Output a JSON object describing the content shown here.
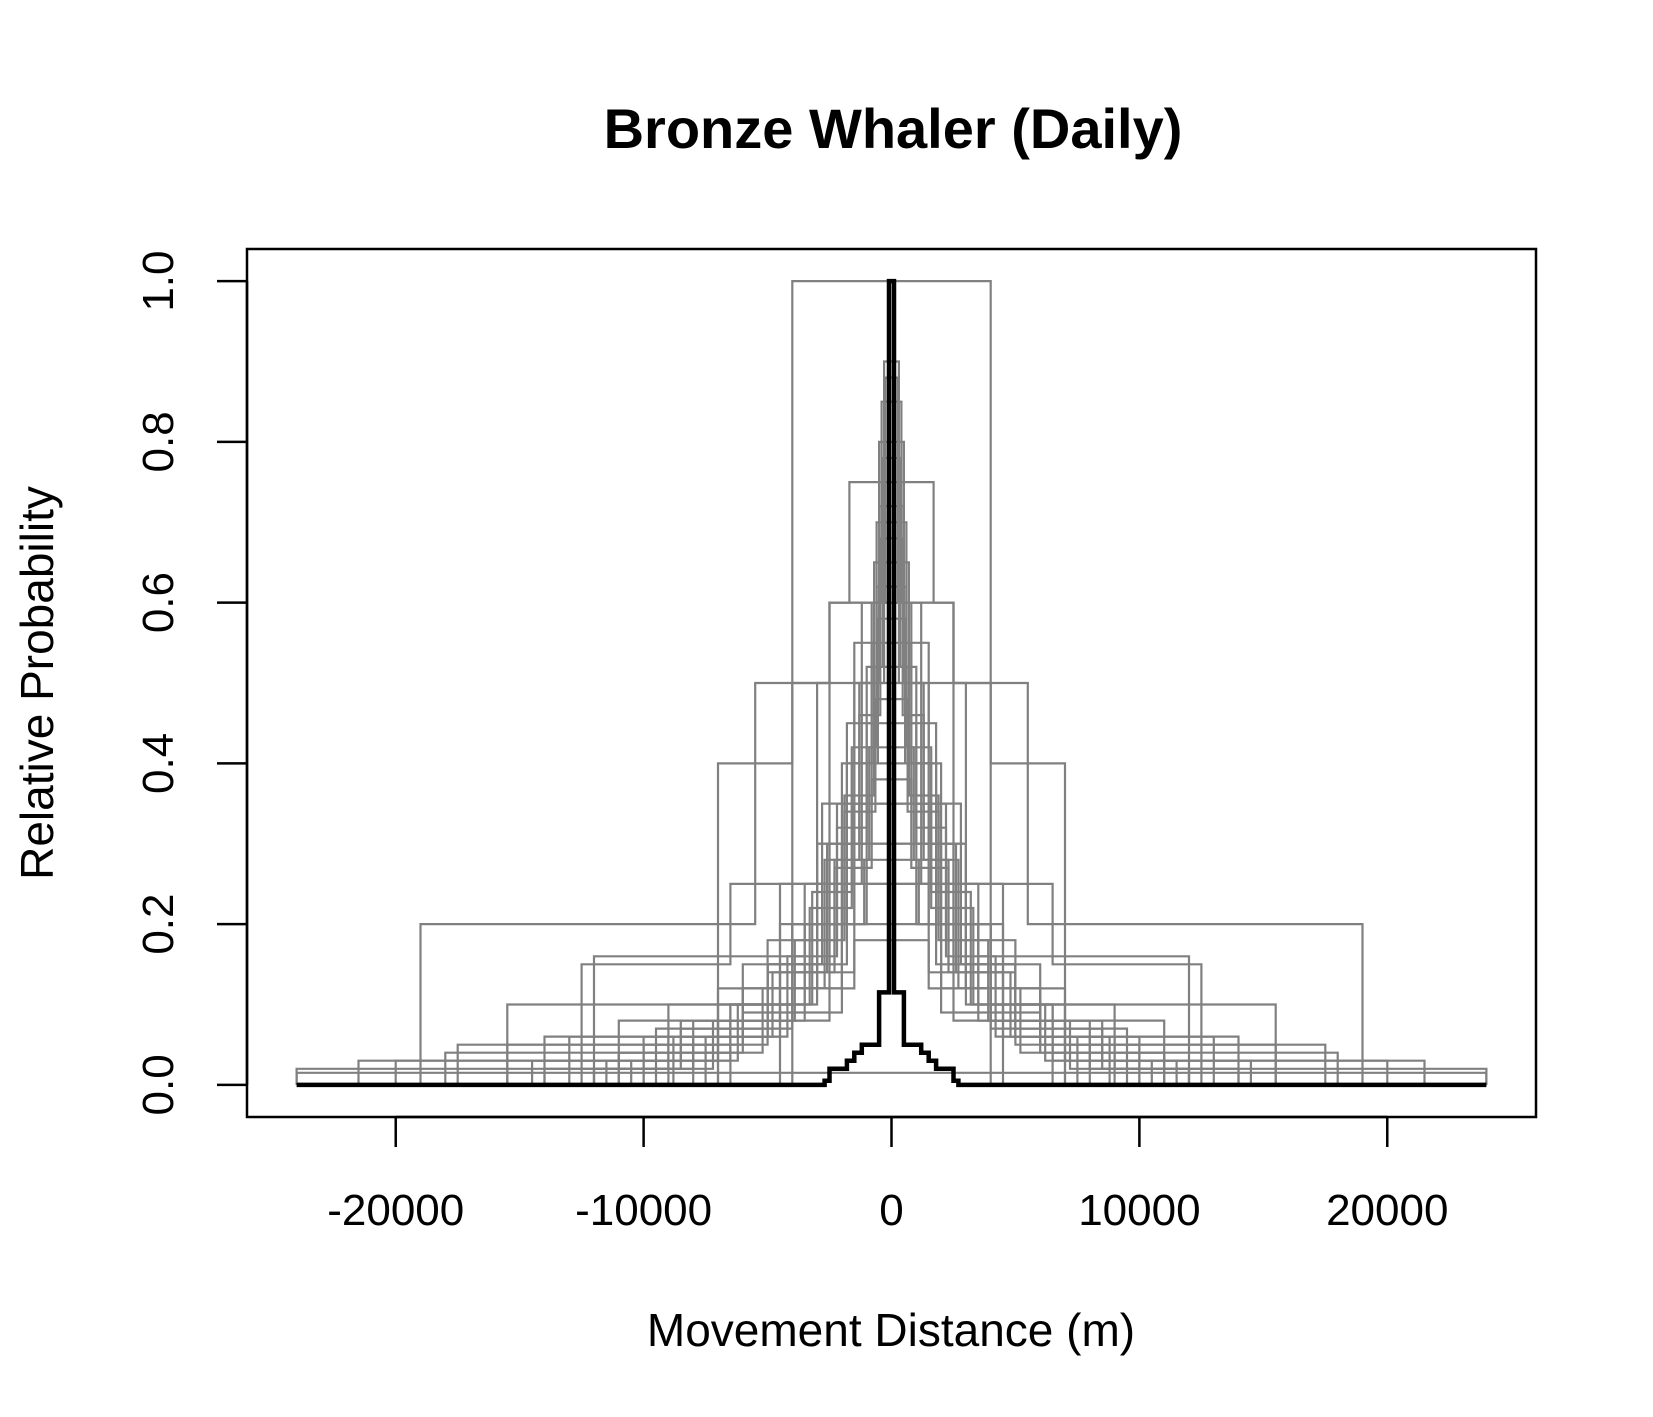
{
  "chart_data": {
    "type": "line",
    "title": "Bronze Whaler (Daily)",
    "xlabel": "Movement Distance (m)",
    "ylabel": "Relative Probability",
    "xlim": [
      -26000,
      26000
    ],
    "ylim": [
      -0.04,
      1.04
    ],
    "x_ticks": [
      -20000,
      -10000,
      0,
      10000,
      20000
    ],
    "x_tick_labels": [
      "-20000",
      "-10000",
      "0",
      "10000",
      "20000"
    ],
    "y_ticks": [
      0,
      0.2,
      0.4,
      0.6,
      0.8,
      1.0
    ],
    "y_tick_labels": [
      "0.0",
      "0.2",
      "0.4",
      "0.6",
      "0.8",
      "1.0"
    ],
    "grid": false,
    "legend": "none",
    "colors": {
      "individual": "#808080",
      "overall": "#000000",
      "axes": "#000000"
    },
    "individual_series": [
      {
        "steps": [
          [
            0,
            1.0
          ],
          [
            4000,
            0.0
          ]
        ]
      },
      {
        "steps": [
          [
            0,
            0.75
          ],
          [
            1700,
            0.6
          ],
          [
            2500,
            0.25
          ],
          [
            4500,
            0.0
          ]
        ]
      },
      {
        "steps": [
          [
            0,
            0.6
          ],
          [
            2500,
            0.5
          ],
          [
            4000,
            0.4
          ],
          [
            5500,
            0.2
          ],
          [
            7000,
            0.0
          ]
        ]
      },
      {
        "steps": [
          [
            0,
            0.6
          ],
          [
            2500,
            0.5
          ],
          [
            5500,
            0.4
          ],
          [
            7000,
            0.2
          ],
          [
            19000,
            0.0
          ]
        ]
      },
      {
        "steps": [
          [
            0,
            0.5
          ],
          [
            3000,
            0.25
          ],
          [
            6500,
            0.15
          ],
          [
            12500,
            0.0
          ]
        ]
      },
      {
        "steps": [
          [
            0,
            0.9
          ],
          [
            300,
            0.5
          ],
          [
            1500,
            0.3
          ],
          [
            3000,
            0.15
          ],
          [
            5000,
            0.06
          ],
          [
            9000,
            0.02
          ],
          [
            12000,
            0.0
          ]
        ]
      },
      {
        "steps": [
          [
            0,
            0.85
          ],
          [
            400,
            0.6
          ],
          [
            1200,
            0.35
          ],
          [
            2800,
            0.15
          ],
          [
            5000,
            0.05
          ],
          [
            10000,
            0.0
          ]
        ]
      },
      {
        "steps": [
          [
            0,
            0.8
          ],
          [
            500,
            0.55
          ],
          [
            1500,
            0.3
          ],
          [
            3000,
            0.12
          ],
          [
            6000,
            0.04
          ],
          [
            11000,
            0.0
          ]
        ]
      },
      {
        "steps": [
          [
            0,
            0.7
          ],
          [
            600,
            0.45
          ],
          [
            1800,
            0.25
          ],
          [
            3500,
            0.1
          ],
          [
            7000,
            0.0
          ]
        ]
      },
      {
        "steps": [
          [
            0,
            0.65
          ],
          [
            700,
            0.4
          ],
          [
            2000,
            0.2
          ],
          [
            4500,
            0.08
          ],
          [
            8000,
            0.0
          ]
        ]
      },
      {
        "steps": [
          [
            0,
            0.55
          ],
          [
            800,
            0.35
          ],
          [
            2200,
            0.18
          ],
          [
            5000,
            0.07
          ],
          [
            9500,
            0.0
          ]
        ]
      },
      {
        "steps": [
          [
            0,
            0.45
          ],
          [
            1000,
            0.3
          ],
          [
            2500,
            0.15
          ],
          [
            6000,
            0.06
          ],
          [
            14000,
            0.0
          ]
        ]
      },
      {
        "steps": [
          [
            0,
            0.35
          ],
          [
            1200,
            0.25
          ],
          [
            3000,
            0.12
          ],
          [
            7000,
            0.05
          ],
          [
            15500,
            0.0
          ]
        ]
      },
      {
        "steps": [
          [
            0,
            0.3
          ],
          [
            1500,
            0.2
          ],
          [
            4000,
            0.1
          ],
          [
            9000,
            0.04
          ],
          [
            18000,
            0.0
          ]
        ]
      },
      {
        "steps": [
          [
            0,
            0.25
          ],
          [
            1800,
            0.15
          ],
          [
            5000,
            0.08
          ],
          [
            11000,
            0.03
          ],
          [
            21500,
            0.0
          ]
        ]
      },
      {
        "steps": [
          [
            0,
            0.2
          ],
          [
            2000,
            0.12
          ],
          [
            6000,
            0.06
          ],
          [
            13000,
            0.02
          ],
          [
            24000,
            0.0
          ]
        ]
      },
      {
        "steps": [
          [
            0,
            0.4
          ],
          [
            1000,
            0.2
          ],
          [
            3500,
            0.16
          ],
          [
            12000,
            0.0
          ]
        ]
      },
      {
        "steps": [
          [
            0,
            0.35
          ],
          [
            1500,
            0.14
          ],
          [
            5000,
            0.1
          ],
          [
            15500,
            0.0
          ]
        ]
      },
      {
        "steps": [
          [
            0,
            0.3
          ],
          [
            2000,
            0.09
          ],
          [
            6000,
            0.05
          ],
          [
            17500,
            0.0
          ]
        ]
      },
      {
        "steps": [
          [
            0,
            0.25
          ],
          [
            2500,
            0.08
          ],
          [
            7000,
            0.03
          ],
          [
            20000,
            0.0
          ]
        ]
      },
      {
        "steps": [
          [
            0,
            0.72
          ],
          [
            500,
            0.5
          ],
          [
            1300,
            0.3
          ],
          [
            2600,
            0.14
          ],
          [
            4500,
            0.06
          ],
          [
            8000,
            0.02
          ],
          [
            13000,
            0.0
          ]
        ]
      },
      {
        "steps": [
          [
            0,
            0.62
          ],
          [
            600,
            0.42
          ],
          [
            1600,
            0.24
          ],
          [
            3200,
            0.1
          ],
          [
            6500,
            0.03
          ],
          [
            11500,
            0.0
          ]
        ]
      },
      {
        "steps": [
          [
            0,
            0.52
          ],
          [
            700,
            0.36
          ],
          [
            1900,
            0.2
          ],
          [
            4000,
            0.08
          ],
          [
            8500,
            0.02
          ],
          [
            14000,
            0.0
          ]
        ]
      },
      {
        "steps": [
          [
            0,
            0.42
          ],
          [
            900,
            0.28
          ],
          [
            2300,
            0.15
          ],
          [
            5000,
            0.06
          ],
          [
            10000,
            0.0
          ]
        ]
      },
      {
        "steps": [
          [
            0,
            0.88
          ],
          [
            250,
            0.6
          ],
          [
            800,
            0.4
          ],
          [
            1800,
            0.2
          ],
          [
            3500,
            0.08
          ],
          [
            6500,
            0.0
          ]
        ]
      },
      {
        "steps": [
          [
            0,
            0.78
          ],
          [
            350,
            0.52
          ],
          [
            1000,
            0.32
          ],
          [
            2200,
            0.16
          ],
          [
            4200,
            0.06
          ],
          [
            7500,
            0.0
          ]
        ]
      },
      {
        "steps": [
          [
            0,
            0.68
          ],
          [
            450,
            0.46
          ],
          [
            1300,
            0.28
          ],
          [
            2700,
            0.12
          ],
          [
            5200,
            0.04
          ],
          [
            9000,
            0.0
          ]
        ]
      },
      {
        "steps": [
          [
            0,
            0.58
          ],
          [
            550,
            0.4
          ],
          [
            1600,
            0.22
          ],
          [
            3300,
            0.1
          ],
          [
            6200,
            0.03
          ],
          [
            10500,
            0.0
          ]
        ]
      },
      {
        "steps": [
          [
            0,
            0.48
          ],
          [
            650,
            0.34
          ],
          [
            1900,
            0.18
          ],
          [
            3900,
            0.08
          ],
          [
            7200,
            0.02
          ],
          [
            12000,
            0.0
          ]
        ]
      },
      {
        "steps": [
          [
            0,
            0.38
          ],
          [
            800,
            0.27
          ],
          [
            2300,
            0.14
          ],
          [
            4800,
            0.06
          ],
          [
            8800,
            0.0
          ]
        ]
      },
      {
        "steps": [
          [
            0,
            0.28
          ],
          [
            1100,
            0.2
          ],
          [
            3000,
            0.1
          ],
          [
            6500,
            0.04
          ],
          [
            11000,
            0.0
          ]
        ]
      },
      {
        "steps": [
          [
            0,
            0.18
          ],
          [
            1500,
            0.12
          ],
          [
            4000,
            0.07
          ],
          [
            8500,
            0.03
          ],
          [
            14500,
            0.0
          ]
        ]
      },
      {
        "steps": [
          [
            0,
            0.015
          ],
          [
            24000,
            0.0
          ]
        ]
      }
    ],
    "overall_series": {
      "steps": [
        [
          0,
          1.0
        ],
        [
          100,
          0.115
        ],
        [
          500,
          0.05
        ],
        [
          1200,
          0.04
        ],
        [
          1500,
          0.03
        ],
        [
          1800,
          0.02
        ],
        [
          2500,
          0.005
        ],
        [
          2700,
          0.0
        ],
        [
          24000,
          0.0
        ]
      ]
    }
  }
}
